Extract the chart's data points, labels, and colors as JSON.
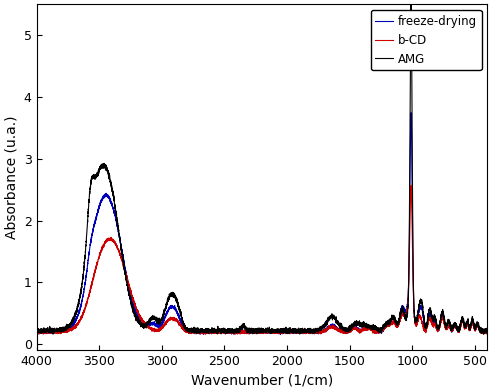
{
  "title": "",
  "xlabel": "Wavenumber (1/cm)",
  "ylabel": "Absorbance (u.a.)",
  "xlim": [
    4000,
    400
  ],
  "ylim": [
    -0.1,
    5.5
  ],
  "yticks": [
    0,
    1,
    2,
    3,
    4,
    5
  ],
  "xticks": [
    4000,
    3500,
    3000,
    2500,
    2000,
    1500,
    1000,
    500
  ],
  "legend_labels": [
    "AMG",
    "b-CD",
    "freeze-drying"
  ],
  "legend_colors": [
    "black",
    "#cc0000",
    "#0000bb"
  ],
  "background_color": "#ffffff",
  "line_width": 0.8
}
